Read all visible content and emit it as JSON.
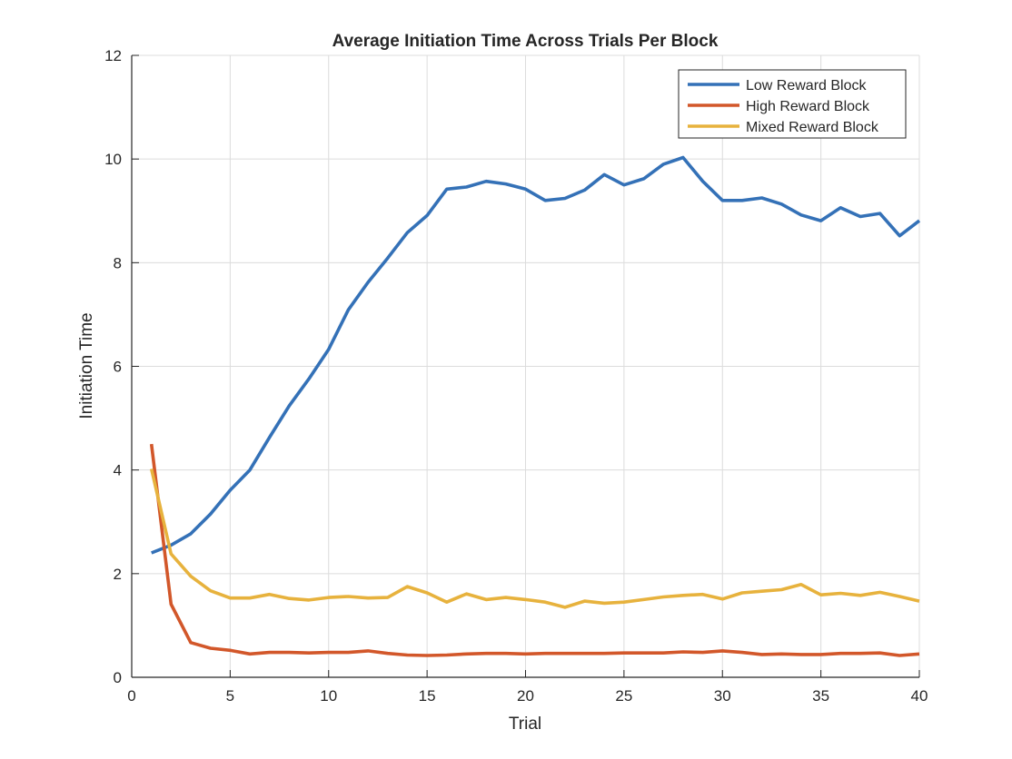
{
  "chart_data": {
    "type": "line",
    "title": "Average Initiation Time Across Trials Per Block",
    "xlabel": "Trial",
    "ylabel": "Initiation Time",
    "xlim": [
      0,
      40
    ],
    "ylim": [
      0,
      12
    ],
    "xticks": [
      0,
      5,
      10,
      15,
      20,
      25,
      30,
      35,
      40
    ],
    "yticks": [
      0,
      2,
      4,
      6,
      8,
      10,
      12
    ],
    "grid": true,
    "legend_position": "top-right",
    "x": [
      1,
      2,
      3,
      4,
      5,
      6,
      7,
      8,
      9,
      10,
      11,
      12,
      13,
      14,
      15,
      16,
      17,
      18,
      19,
      20,
      21,
      22,
      23,
      24,
      25,
      26,
      27,
      28,
      29,
      30,
      31,
      32,
      33,
      34,
      35,
      36,
      37,
      38,
      39,
      40
    ],
    "series": [
      {
        "name": "Low Reward Block",
        "color": "#3471b7",
        "values": [
          2.4,
          2.55,
          2.77,
          3.15,
          3.61,
          4.0,
          4.63,
          5.24,
          5.76,
          6.33,
          7.09,
          7.62,
          8.09,
          8.58,
          8.91,
          9.42,
          9.46,
          9.57,
          9.52,
          9.42,
          9.2,
          9.24,
          9.4,
          9.7,
          9.5,
          9.62,
          9.9,
          10.03,
          9.57,
          9.2,
          9.2,
          9.25,
          9.13,
          8.92,
          8.81,
          9.06,
          8.89,
          8.95,
          8.52,
          8.81
        ]
      },
      {
        "name": "High Reward Block",
        "color": "#d2572a",
        "values": [
          4.5,
          1.41,
          0.67,
          0.56,
          0.52,
          0.45,
          0.48,
          0.48,
          0.47,
          0.48,
          0.48,
          0.51,
          0.46,
          0.43,
          0.42,
          0.43,
          0.45,
          0.46,
          0.46,
          0.45,
          0.46,
          0.46,
          0.46,
          0.46,
          0.47,
          0.47,
          0.47,
          0.49,
          0.48,
          0.51,
          0.48,
          0.44,
          0.45,
          0.44,
          0.44,
          0.46,
          0.46,
          0.47,
          0.42,
          0.45
        ]
      },
      {
        "name": "Mixed Reward Block",
        "color": "#e7b23d",
        "values": [
          4.02,
          2.38,
          1.95,
          1.67,
          1.53,
          1.53,
          1.6,
          1.52,
          1.49,
          1.54,
          1.56,
          1.53,
          1.54,
          1.75,
          1.63,
          1.45,
          1.61,
          1.5,
          1.54,
          1.5,
          1.45,
          1.35,
          1.47,
          1.43,
          1.45,
          1.5,
          1.55,
          1.58,
          1.6,
          1.51,
          1.63,
          1.66,
          1.69,
          1.79,
          1.59,
          1.62,
          1.58,
          1.64,
          1.56,
          1.47
        ]
      }
    ]
  }
}
